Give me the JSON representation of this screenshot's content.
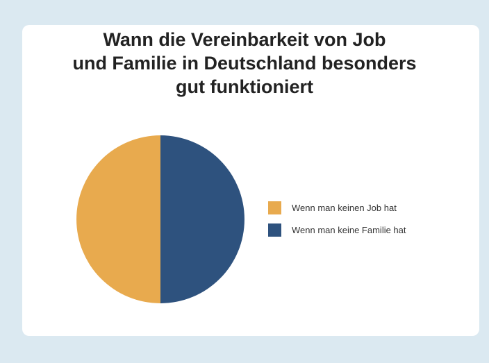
{
  "chart_data": {
    "type": "pie",
    "title_lines": [
      "Wann die Vereinbarkeit von Job",
      "und Familie in Deutschland besonders",
      "gut funktioniert"
    ],
    "slices": [
      {
        "label": "Wenn man keinen Job hat",
        "value": 50,
        "color": "#E8AA4E"
      },
      {
        "label": "Wenn man keine Familie hat",
        "value": 50,
        "color": "#2E527E"
      }
    ],
    "legend_position": "right"
  },
  "colors": {
    "background": "#DBE9F1",
    "card": "#FFFFFF"
  }
}
